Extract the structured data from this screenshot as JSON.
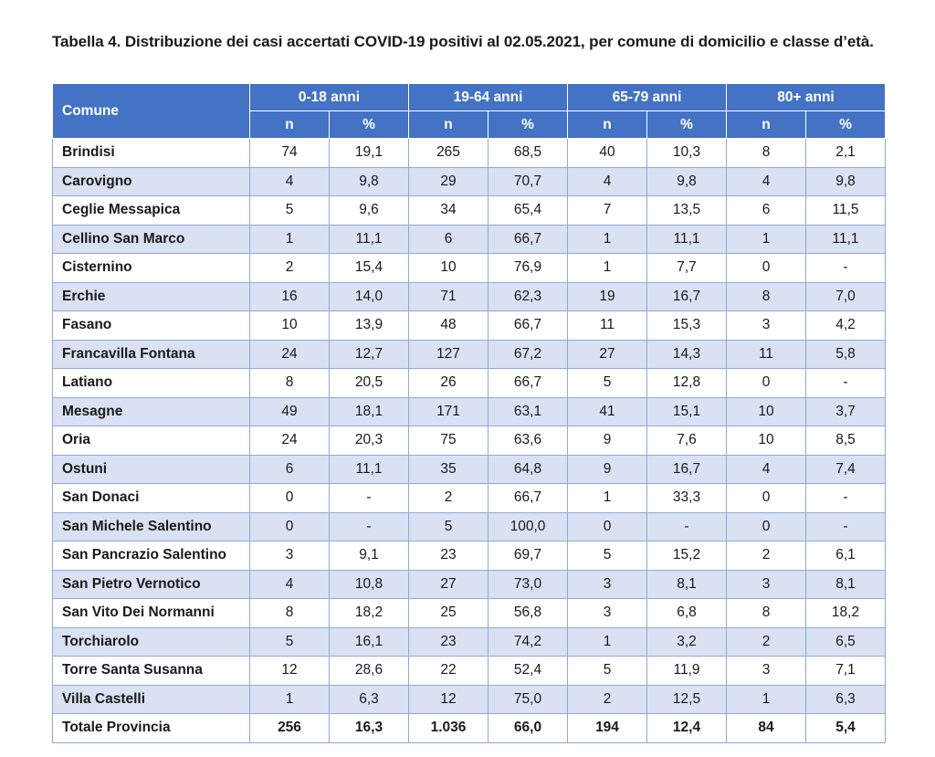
{
  "caption": "Tabella 4. Distribuzione dei casi accertati COVID-19 positivi al 02.05.2021, per comune di domicilio e classe d’età.",
  "table": {
    "comune_header": "Comune",
    "age_groups": [
      "0-18 anni",
      "19-64 anni",
      "65-79 anni",
      "80+ anni"
    ],
    "sub_headers": [
      "n",
      "%",
      "n",
      "%",
      "n",
      "%",
      "n",
      "%"
    ],
    "rows": [
      {
        "comune": "Brindisi",
        "values": [
          "74",
          "19,1",
          "265",
          "68,5",
          "40",
          "10,3",
          "8",
          "2,1"
        ]
      },
      {
        "comune": "Carovigno",
        "values": [
          "4",
          "9,8",
          "29",
          "70,7",
          "4",
          "9,8",
          "4",
          "9,8"
        ]
      },
      {
        "comune": "Ceglie Messapica",
        "values": [
          "5",
          "9,6",
          "34",
          "65,4",
          "7",
          "13,5",
          "6",
          "11,5"
        ]
      },
      {
        "comune": "Cellino San Marco",
        "values": [
          "1",
          "11,1",
          "6",
          "66,7",
          "1",
          "11,1",
          "1",
          "11,1"
        ]
      },
      {
        "comune": "Cisternino",
        "values": [
          "2",
          "15,4",
          "10",
          "76,9",
          "1",
          "7,7",
          "0",
          "-"
        ]
      },
      {
        "comune": "Erchie",
        "values": [
          "16",
          "14,0",
          "71",
          "62,3",
          "19",
          "16,7",
          "8",
          "7,0"
        ]
      },
      {
        "comune": "Fasano",
        "values": [
          "10",
          "13,9",
          "48",
          "66,7",
          "11",
          "15,3",
          "3",
          "4,2"
        ]
      },
      {
        "comune": "Francavilla Fontana",
        "values": [
          "24",
          "12,7",
          "127",
          "67,2",
          "27",
          "14,3",
          "11",
          "5,8"
        ]
      },
      {
        "comune": "Latiano",
        "values": [
          "8",
          "20,5",
          "26",
          "66,7",
          "5",
          "12,8",
          "0",
          "-"
        ]
      },
      {
        "comune": "Mesagne",
        "values": [
          "49",
          "18,1",
          "171",
          "63,1",
          "41",
          "15,1",
          "10",
          "3,7"
        ]
      },
      {
        "comune": "Oria",
        "values": [
          "24",
          "20,3",
          "75",
          "63,6",
          "9",
          "7,6",
          "10",
          "8,5"
        ]
      },
      {
        "comune": "Ostuni",
        "values": [
          "6",
          "11,1",
          "35",
          "64,8",
          "9",
          "16,7",
          "4",
          "7,4"
        ]
      },
      {
        "comune": "San Donaci",
        "values": [
          "0",
          "-",
          "2",
          "66,7",
          "1",
          "33,3",
          "0",
          "-"
        ]
      },
      {
        "comune": "San Michele Salentino",
        "values": [
          "0",
          "-",
          "5",
          "100,0",
          "0",
          "-",
          "0",
          "-"
        ]
      },
      {
        "comune": "San Pancrazio Salentino",
        "values": [
          "3",
          "9,1",
          "23",
          "69,7",
          "5",
          "15,2",
          "2",
          "6,1"
        ]
      },
      {
        "comune": "San Pietro Vernotico",
        "values": [
          "4",
          "10,8",
          "27",
          "73,0",
          "3",
          "8,1",
          "3",
          "8,1"
        ]
      },
      {
        "comune": "San Vito Dei Normanni",
        "values": [
          "8",
          "18,2",
          "25",
          "56,8",
          "3",
          "6,8",
          "8",
          "18,2"
        ]
      },
      {
        "comune": "Torchiarolo",
        "values": [
          "5",
          "16,1",
          "23",
          "74,2",
          "1",
          "3,2",
          "2",
          "6,5"
        ]
      },
      {
        "comune": "Torre Santa Susanna",
        "values": [
          "12",
          "28,6",
          "22",
          "52,4",
          "5",
          "11,9",
          "3",
          "7,1"
        ]
      },
      {
        "comune": "Villa Castelli",
        "values": [
          "1",
          "6,3",
          "12",
          "75,0",
          "2",
          "12,5",
          "1",
          "6,3"
        ]
      }
    ],
    "total": {
      "comune": "Totale Provincia",
      "values": [
        "256",
        "16,3",
        "1.036",
        "66,0",
        "194",
        "12,4",
        "84",
        "5,4"
      ]
    }
  },
  "colors": {
    "header_bg": "#4472c4",
    "header_text": "#ffffff",
    "row_alt_bg": "#d9e1f2",
    "border": "#8ea9db"
  }
}
